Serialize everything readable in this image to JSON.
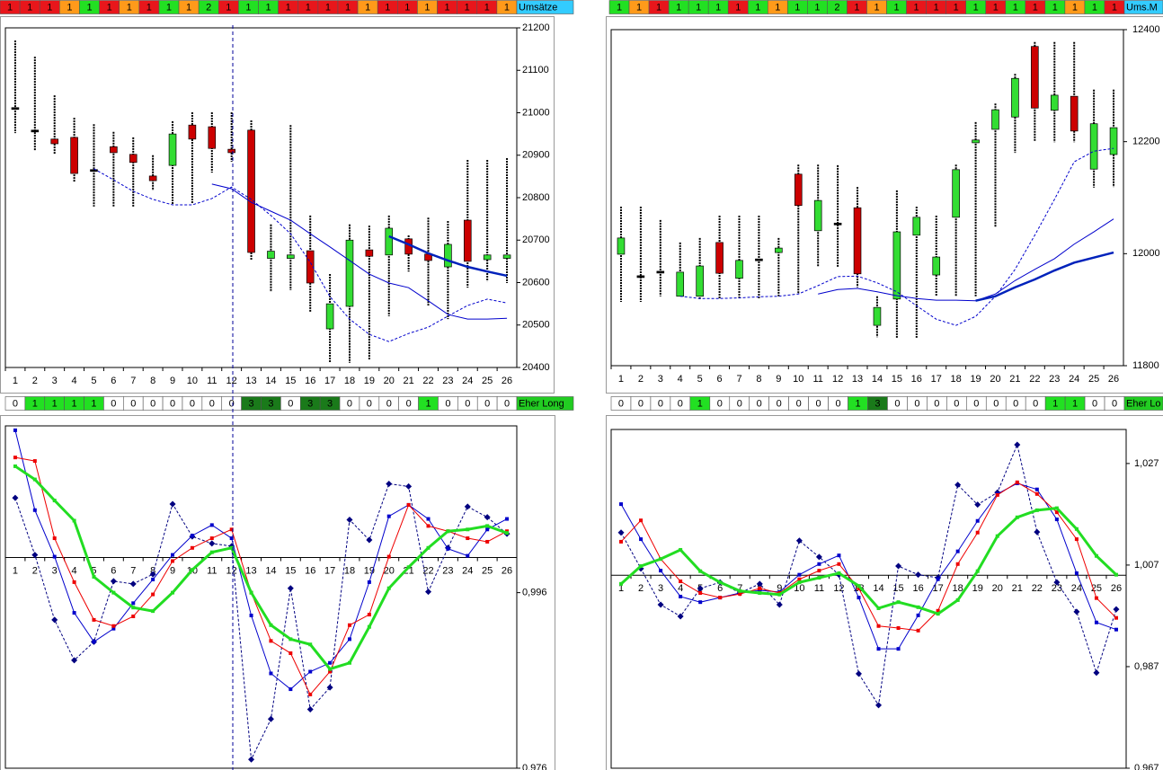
{
  "strips": [
    {
      "cells": [
        1,
        1,
        1,
        1,
        1,
        1,
        1,
        1,
        1,
        1,
        2,
        1,
        1,
        1,
        1,
        1,
        1,
        1,
        1,
        1,
        1,
        1,
        1,
        1,
        1,
        1
      ],
      "colors": [
        "#e8161b",
        "#e8161b",
        "#e8161b",
        "#ff9a1a",
        "#22e022",
        "#e8161b",
        "#ff9a1a",
        "#e8161b",
        "#22e022",
        "#ff9a1a",
        "#22e022",
        "#e8161b",
        "#22e022",
        "#22e022",
        "#e8161b",
        "#e8161b",
        "#e8161b",
        "#e8161b",
        "#ff9a1a",
        "#e8161b",
        "#e8161b",
        "#ff9a1a",
        "#e8161b",
        "#e8161b",
        "#e8161b",
        "#ff9a1a"
      ],
      "label": "Umsätze",
      "label_color": "#33ccff"
    },
    {
      "cells": [
        1,
        1,
        1,
        1,
        1,
        1,
        1,
        1,
        1,
        1,
        1,
        2,
        1,
        1,
        1,
        1,
        1,
        1,
        1,
        1,
        1,
        1,
        1,
        1,
        1,
        1
      ],
      "colors": [
        "#22e022",
        "#ff9a1a",
        "#e8161b",
        "#22e022",
        "#22e022",
        "#22e022",
        "#e8161b",
        "#22e022",
        "#ff9a1a",
        "#22e022",
        "#22e022",
        "#22e022",
        "#e8161b",
        "#ff9a1a",
        "#22e022",
        "#e8161b",
        "#e8161b",
        "#e8161b",
        "#22e022",
        "#e8161b",
        "#22e022",
        "#e8161b",
        "#22e022",
        "#ff9a1a",
        "#22e022",
        "#e8161b"
      ],
      "label": "Ums.M",
      "label_color": "#33ccff"
    },
    {
      "cells": [
        0,
        1,
        1,
        1,
        1,
        0,
        0,
        0,
        0,
        0,
        0,
        0,
        3,
        3,
        0,
        3,
        3,
        0,
        0,
        0,
        0,
        1,
        0,
        0,
        0,
        0
      ],
      "colors": [
        "#ffffff",
        "#22e022",
        "#22e022",
        "#22e022",
        "#22e022",
        "#ffffff",
        "#ffffff",
        "#ffffff",
        "#ffffff",
        "#ffffff",
        "#ffffff",
        "#ffffff",
        "#1a7a1a",
        "#1a7a1a",
        "#ffffff",
        "#1a7a1a",
        "#1a7a1a",
        "#ffffff",
        "#ffffff",
        "#ffffff",
        "#ffffff",
        "#22e022",
        "#ffffff",
        "#ffffff",
        "#ffffff",
        "#ffffff"
      ],
      "label": "Eher Long",
      "label_color": "#22cc22"
    },
    {
      "cells": [
        0,
        0,
        0,
        0,
        1,
        0,
        0,
        0,
        0,
        0,
        0,
        0,
        1,
        3,
        0,
        0,
        0,
        0,
        0,
        0,
        0,
        0,
        1,
        1,
        0,
        0
      ],
      "colors": [
        "#ffffff",
        "#ffffff",
        "#ffffff",
        "#ffffff",
        "#22e022",
        "#ffffff",
        "#ffffff",
        "#ffffff",
        "#ffffff",
        "#ffffff",
        "#ffffff",
        "#ffffff",
        "#22e022",
        "#1a7a1a",
        "#ffffff",
        "#ffffff",
        "#ffffff",
        "#ffffff",
        "#ffffff",
        "#ffffff",
        "#ffffff",
        "#ffffff",
        "#22e022",
        "#22e022",
        "#ffffff",
        "#ffffff"
      ],
      "label": "Eher Lo",
      "label_color": "#22cc22"
    }
  ],
  "chart_data": [
    {
      "type": "candlestick",
      "categories": [
        "1",
        "2",
        "3",
        "4",
        "5",
        "6",
        "7",
        "8",
        "9",
        "10",
        "11",
        "12",
        "13",
        "14",
        "15",
        "16",
        "17",
        "18",
        "19",
        "20",
        "21",
        "22",
        "23",
        "24",
        "25",
        "26"
      ],
      "open": [
        21010,
        20957,
        20938,
        20942,
        20864,
        20920,
        20902,
        20851,
        20876,
        20971,
        20967,
        20914,
        20959,
        20657,
        20657,
        20675,
        20491,
        20544,
        20677,
        20665,
        20703,
        20667,
        20637,
        20747,
        20654,
        20657
      ],
      "high": [
        21170,
        21132,
        21041,
        20988,
        20973,
        20955,
        20942,
        20900,
        20980,
        21001,
        21001,
        21001,
        20982,
        20737,
        20971,
        20758,
        20620,
        20737,
        20734,
        20758,
        20711,
        20753,
        20745,
        20889,
        20889,
        20893
      ],
      "low": [
        20952,
        20910,
        20902,
        20836,
        20779,
        20779,
        20777,
        20817,
        20785,
        20787,
        20859,
        20885,
        20654,
        20578,
        20582,
        20531,
        20411,
        20411,
        20419,
        20521,
        20626,
        20546,
        20514,
        20588,
        20603,
        20599
      ],
      "close": [
        21010,
        20957,
        20927,
        20857,
        20864,
        20906,
        20883,
        20840,
        20950,
        20938,
        20916,
        20906,
        20671,
        20674,
        20665,
        20599,
        20550,
        20700,
        20662,
        20728,
        20667,
        20652,
        20690,
        20650,
        20665,
        20665
      ],
      "up_color": "#33dd33",
      "down_color": "#cc0000",
      "flat_color": "#000000",
      "lines": [
        {
          "color": "#0000cc",
          "dash": true,
          "width": 1,
          "values": [
            null,
            null,
            null,
            null,
            20868,
            20842,
            20815,
            20796,
            20783,
            20783,
            20798,
            20825,
            20796,
            20758,
            20715,
            20648,
            20567,
            20514,
            20478,
            20461,
            20480,
            20495,
            20521,
            20546,
            20561,
            20552
          ]
        },
        {
          "color": "#0000cc",
          "dash": false,
          "width": 1,
          "values": [
            null,
            null,
            null,
            null,
            null,
            null,
            null,
            null,
            null,
            null,
            20832,
            20821,
            20789,
            20768,
            20747,
            20715,
            20684,
            20652,
            20620,
            20599,
            20588,
            20557,
            20525,
            20514,
            20514,
            20516
          ]
        },
        {
          "color": "#0022bb",
          "dash": false,
          "width": 2.5,
          "values": [
            null,
            null,
            null,
            null,
            null,
            null,
            null,
            null,
            null,
            null,
            null,
            null,
            null,
            null,
            null,
            null,
            null,
            null,
            null,
            20709,
            20690,
            20669,
            20652,
            20637,
            20626,
            20616
          ]
        }
      ],
      "ylim": [
        20400,
        21200
      ],
      "yticks": [
        20400,
        20500,
        20600,
        20700,
        20800,
        20900,
        21000,
        21100,
        21200
      ],
      "baseline": 20400
    },
    {
      "type": "candlestick",
      "categories": [
        "1",
        "2",
        "3",
        "4",
        "5",
        "6",
        "7",
        "8",
        "9",
        "10",
        "11",
        "12",
        "13",
        "14",
        "15",
        "16",
        "17",
        "18",
        "19",
        "20",
        "21",
        "22",
        "23",
        "24",
        "25",
        "26"
      ],
      "open": [
        11999,
        11959,
        11967,
        11924,
        11924,
        12020,
        11956,
        11989,
        12002,
        12142,
        12041,
        12053,
        12082,
        11872,
        11919,
        12033,
        11962,
        12065,
        12198,
        12222,
        12244,
        12370,
        12256,
        12281,
        12151,
        12177
      ],
      "high": [
        12084,
        12084,
        12060,
        12020,
        12028,
        12068,
        12068,
        12068,
        12028,
        12159,
        12159,
        12158,
        12119,
        11924,
        12113,
        12084,
        12068,
        12159,
        12235,
        12268,
        12321,
        12378,
        12378,
        12378,
        12293,
        12293
      ],
      "low": [
        11914,
        11914,
        11924,
        11924,
        11919,
        11919,
        11919,
        11919,
        11924,
        11928,
        11976,
        11976,
        11940,
        11851,
        11850,
        11850,
        11924,
        11924,
        11924,
        12047,
        12180,
        12201,
        12199,
        12199,
        12118,
        12119
      ],
      "close": [
        12028,
        11959,
        11967,
        11967,
        11978,
        11965,
        11988,
        11989,
        12010,
        12086,
        12095,
        12053,
        11964,
        11904,
        12039,
        12065,
        11994,
        12150,
        12203,
        12257,
        12313,
        12260,
        12283,
        12219,
        12232,
        12225
      ],
      "up_color": "#33dd33",
      "down_color": "#cc0000",
      "flat_color": "#000000",
      "lines": [
        {
          "color": "#0000cc",
          "dash": true,
          "width": 1,
          "values": [
            null,
            null,
            null,
            11924,
            11920,
            11920,
            11921,
            11923,
            11924,
            11928,
            11943,
            11959,
            11960,
            11948,
            11932,
            11907,
            11883,
            11872,
            11888,
            11924,
            11972,
            12033,
            12097,
            12164,
            12183,
            12188
          ]
        },
        {
          "color": "#0000cc",
          "dash": false,
          "width": 1,
          "values": [
            null,
            null,
            null,
            null,
            null,
            null,
            null,
            null,
            null,
            null,
            11928,
            11936,
            11938,
            11932,
            11925,
            11920,
            11917,
            11917,
            11916,
            11928,
            11952,
            11972,
            11991,
            12017,
            12039,
            12062
          ]
        },
        {
          "color": "#0022bb",
          "dash": false,
          "width": 2.5,
          "values": [
            null,
            null,
            null,
            null,
            null,
            null,
            null,
            null,
            null,
            null,
            null,
            null,
            null,
            null,
            null,
            null,
            null,
            null,
            11916,
            11924,
            11940,
            11954,
            11970,
            11984,
            11993,
            12002
          ]
        }
      ],
      "ylim": [
        11800,
        12400
      ],
      "yticks": [
        11800,
        12000,
        12200,
        12400
      ],
      "baseline": 11800
    },
    {
      "type": "line",
      "categories": [
        "1",
        "2",
        "3",
        "4",
        "5",
        "6",
        "7",
        "8",
        "9",
        "10",
        "11",
        "12",
        "13",
        "14",
        "15",
        "16",
        "17",
        "18",
        "19",
        "20",
        "21",
        "22",
        "23",
        "24",
        "25",
        "26"
      ],
      "series": [
        {
          "color": "#000080",
          "dash": true,
          "marker": "diamond",
          "width": 1,
          "values": [
            1.0068,
            1.0003,
            0.9929,
            0.9883,
            0.9904,
            0.9973,
            0.997,
            0.9981,
            1.0061,
            1.0024,
            1.0016,
            1.0013,
            0.977,
            0.9816,
            0.9965,
            0.9827,
            0.9852,
            1.0043,
            1.002,
            1.0084,
            1.0081,
            0.9961,
            1.0011,
            1.0058,
            1.0046,
            1.0027
          ]
        },
        {
          "color": "#0000cc",
          "dash": false,
          "marker": "square",
          "width": 1,
          "values": [
            1.0145,
            1.0054,
            1.0001,
            0.9937,
            0.9904,
            0.9919,
            0.9948,
            0.9975,
            1.0003,
            1.0025,
            1.0037,
            1.0022,
            0.9934,
            0.9868,
            0.985,
            0.987,
            0.988,
            0.9907,
            0.9972,
            1.0047,
            1.006,
            1.0044,
            1.001,
            1.0002,
            1.0032,
            1.0044
          ]
        },
        {
          "color": "#ee0000",
          "dash": false,
          "marker": "square",
          "width": 1,
          "values": [
            1.0114,
            1.011,
            1.0022,
            0.9972,
            0.9929,
            0.9922,
            0.9933,
            0.9958,
            0.9996,
            1.0011,
            1.0022,
            1.0032,
            0.996,
            0.9905,
            0.9891,
            0.9844,
            0.987,
            0.9923,
            0.9935,
            1.0001,
            1.006,
            1.0036,
            1.003,
            1.0022,
            1.0018,
            1.003
          ]
        },
        {
          "color": "#22dd22",
          "dash": false,
          "marker": "square",
          "width": 3,
          "values": [
            1.0104,
            1.0089,
            1.0065,
            1.0042,
            0.9978,
            0.996,
            0.9943,
            0.9939,
            0.996,
            0.9986,
            1.0006,
            1.0011,
            0.996,
            0.9923,
            0.9907,
            0.9901,
            0.9873,
            0.988,
            0.9921,
            0.9965,
            0.9989,
            1.0011,
            1.003,
            1.0032,
            1.0036,
            1.0028
          ]
        }
      ],
      "ylim": [
        0.976,
        1.015
      ],
      "yticks": [
        {
          "value": 0.976,
          "label": "0,976"
        },
        {
          "value": 0.996,
          "label": "0,996"
        }
      ],
      "baseline": 1.0
    },
    {
      "type": "line",
      "categories": [
        "1",
        "2",
        "3",
        "4",
        "5",
        "6",
        "7",
        "8",
        "9",
        "10",
        "11",
        "12",
        "13",
        "14",
        "15",
        "16",
        "17",
        "18",
        "19",
        "20",
        "21",
        "22",
        "23",
        "24",
        "25",
        "26"
      ],
      "series": [
        {
          "color": "#000080",
          "dash": true,
          "marker": "diamond",
          "width": 1,
          "values": [
            1.0134,
            1.0063,
            0.9992,
            0.9969,
            1.0024,
            1.0036,
            1.0015,
            1.0033,
            0.9992,
            1.0118,
            1.0086,
            1.0051,
            0.9856,
            0.9794,
            1.0068,
            1.0051,
            1.0045,
            1.0228,
            1.0189,
            1.0213,
            1.0307,
            1.0135,
            1.0036,
            0.9978,
            0.9858,
            0.9983
          ]
        },
        {
          "color": "#0000cc",
          "dash": false,
          "marker": "square",
          "width": 1,
          "values": [
            1.019,
            1.0121,
            1.0059,
            1.0008,
            0.9997,
            1.0006,
            1.0015,
            1.002,
            1.0017,
            1.0051,
            1.0072,
            1.0089,
            1.0006,
            0.9905,
            0.9905,
            0.9971,
            1.0042,
            1.0097,
            1.0157,
            1.021,
            1.0231,
            1.0219,
            1.016,
            1.0054,
            0.9957,
            0.9943
          ]
        },
        {
          "color": "#ee0000",
          "dash": false,
          "marker": "square",
          "width": 1,
          "values": [
            1.0116,
            1.0158,
            1.0082,
            1.0038,
            1.0015,
            1.0006,
            1.0013,
            1.0024,
            1.0015,
            1.0042,
            1.0059,
            1.0072,
            1.0024,
            0.995,
            0.9946,
            0.9941,
            0.998,
            1.0072,
            1.0134,
            1.0208,
            1.0233,
            1.021,
            1.0174,
            1.0121,
            1.0005,
            0.9966
          ]
        },
        {
          "color": "#22dd22",
          "dash": false,
          "marker": "square",
          "width": 3,
          "values": [
            1.0033,
            1.0068,
            1.0082,
            1.01,
            1.0058,
            1.0036,
            1.0019,
            1.0015,
            1.0012,
            1.0036,
            1.0045,
            1.0054,
            1.0029,
            0.9985,
            0.9997,
            0.9987,
            0.9974,
            1.0001,
            1.0058,
            1.0127,
            1.0164,
            1.0178,
            1.0182,
            1.0141,
            1.0088,
            1.0051
          ]
        }
      ],
      "ylim": [
        0.967,
        1.0337
      ],
      "yticks": [
        {
          "value": 0.967,
          "label": "0,967"
        },
        {
          "value": 0.987,
          "label": "0,987"
        },
        {
          "value": 1.007,
          "label": "1,007"
        },
        {
          "value": 1.027,
          "label": "1,027"
        }
      ],
      "baseline": 1.005
    }
  ]
}
